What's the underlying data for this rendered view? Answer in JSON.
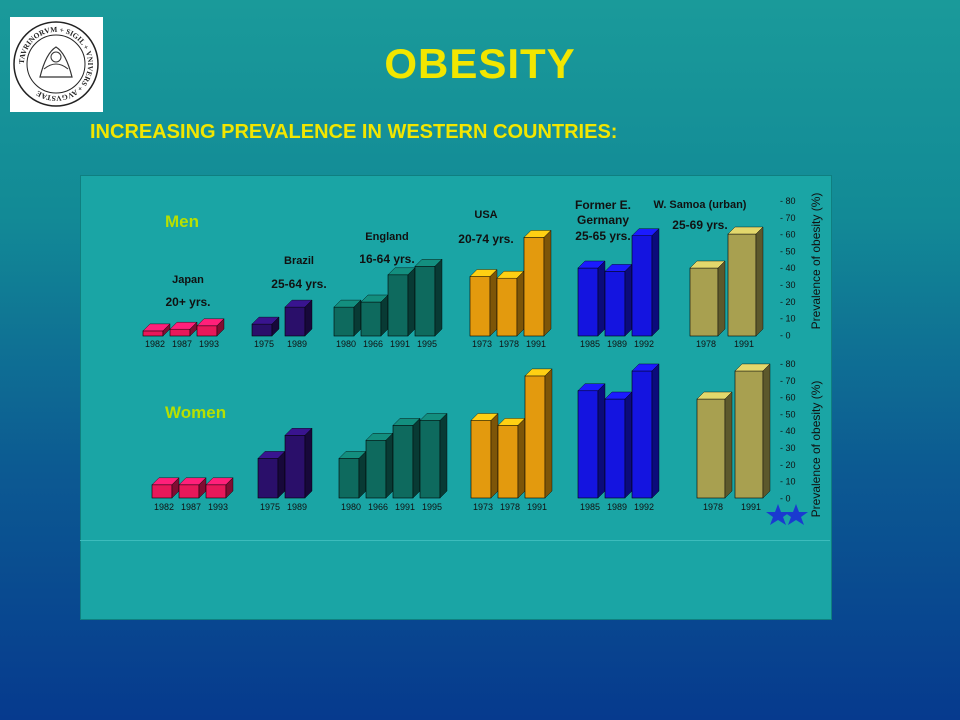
{
  "header": {
    "title": "OBESITY",
    "subtitle": "INCREASING PREVALENCE IN WESTERN COUNTRIES:"
  },
  "logo": {
    "icon": "university-seal-icon",
    "text": "TAVRINORVM + SIGIL + VNIVERS + AVGVSTAE"
  },
  "colors": {
    "title": "#f2e600",
    "panel": "#1aa5a5",
    "japan": "#e8185a",
    "brazil": "#2a0f6a",
    "england": "#0e6a5e",
    "usa": "#e39a0e",
    "germany": "#1414e0",
    "samoa": "#a8a050",
    "men_label": "#b8e000",
    "women_label": "#b8e000"
  },
  "chart_data": {
    "type": "bar",
    "ylabel": "Prevalence of obesity (%)",
    "ylim": [
      0,
      80
    ],
    "yticks": [
      "80",
      "70",
      "60",
      "50",
      "40",
      "30",
      "20",
      "10",
      "0"
    ],
    "panels": [
      {
        "name": "Men",
        "groups": [
          {
            "id": "japan",
            "label": "Japan",
            "age": "20+ yrs.",
            "years": [
              "1982",
              "1987",
              "1993"
            ],
            "values": [
              3,
              4,
              6
            ]
          },
          {
            "id": "brazil",
            "label": "Brazil",
            "age": "25-64 yrs.",
            "years": [
              "1975",
              "1989"
            ],
            "values": [
              7,
              17
            ]
          },
          {
            "id": "england",
            "label": "England",
            "age": "16-64 yrs.",
            "years": [
              "1980",
              "1966",
              "1991",
              "1995"
            ],
            "values": [
              17,
              20,
              36,
              41
            ]
          },
          {
            "id": "usa",
            "label": "USA",
            "age": "20-74 yrs.",
            "years": [
              "1973",
              "1978",
              "1991"
            ],
            "values": [
              35,
              34,
              58
            ]
          },
          {
            "id": "germany",
            "label": "Former E. Germany",
            "age": "25-65 yrs.",
            "years": [
              "1985",
              "1989",
              "1992"
            ],
            "values": [
              40,
              38,
              59
            ]
          },
          {
            "id": "samoa",
            "label": "W. Samoa (urban)",
            "age": "25-69 yrs.",
            "years": [
              "1978",
              "1991"
            ],
            "values": [
              40,
              60
            ]
          }
        ]
      },
      {
        "name": "Women",
        "groups": [
          {
            "id": "japan",
            "years": [
              "1982",
              "1987",
              "1993"
            ],
            "values": [
              8,
              8,
              8
            ]
          },
          {
            "id": "brazil",
            "years": [
              "1975",
              "1989"
            ],
            "values": [
              24,
              38
            ]
          },
          {
            "id": "england",
            "years": [
              "1980",
              "1966",
              "1991",
              "1995"
            ],
            "values": [
              24,
              35,
              44,
              47
            ]
          },
          {
            "id": "usa",
            "years": [
              "1973",
              "1978",
              "1991"
            ],
            "values": [
              47,
              44,
              74
            ]
          },
          {
            "id": "germany",
            "years": [
              "1985",
              "1989",
              "1992"
            ],
            "values": [
              65,
              60,
              77
            ]
          },
          {
            "id": "samoa",
            "years": [
              "1978",
              "1991"
            ],
            "values": [
              60,
              77
            ]
          }
        ]
      }
    ]
  }
}
